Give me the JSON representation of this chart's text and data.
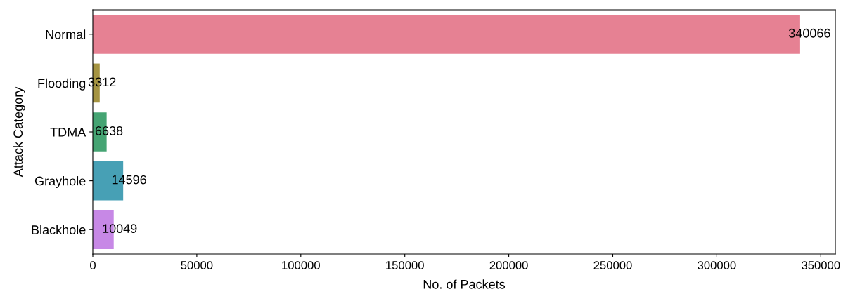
{
  "chart_data": {
    "type": "bar",
    "orientation": "horizontal",
    "xlabel": "No. of Packets",
    "ylabel": "Attack Category",
    "categories": [
      "Normal",
      "Flooding",
      "TDMA",
      "Grayhole",
      "Blackhole"
    ],
    "values": [
      340066,
      3312,
      6638,
      14596,
      10049
    ],
    "colors": [
      "#e68193",
      "#a59442",
      "#45a473",
      "#47a0b5",
      "#c788e6"
    ],
    "xlim": [
      0,
      357000
    ],
    "xticks": [
      0,
      50000,
      100000,
      150000,
      200000,
      250000,
      300000,
      350000
    ],
    "data_labels": true,
    "grid": false,
    "legend": false
  }
}
